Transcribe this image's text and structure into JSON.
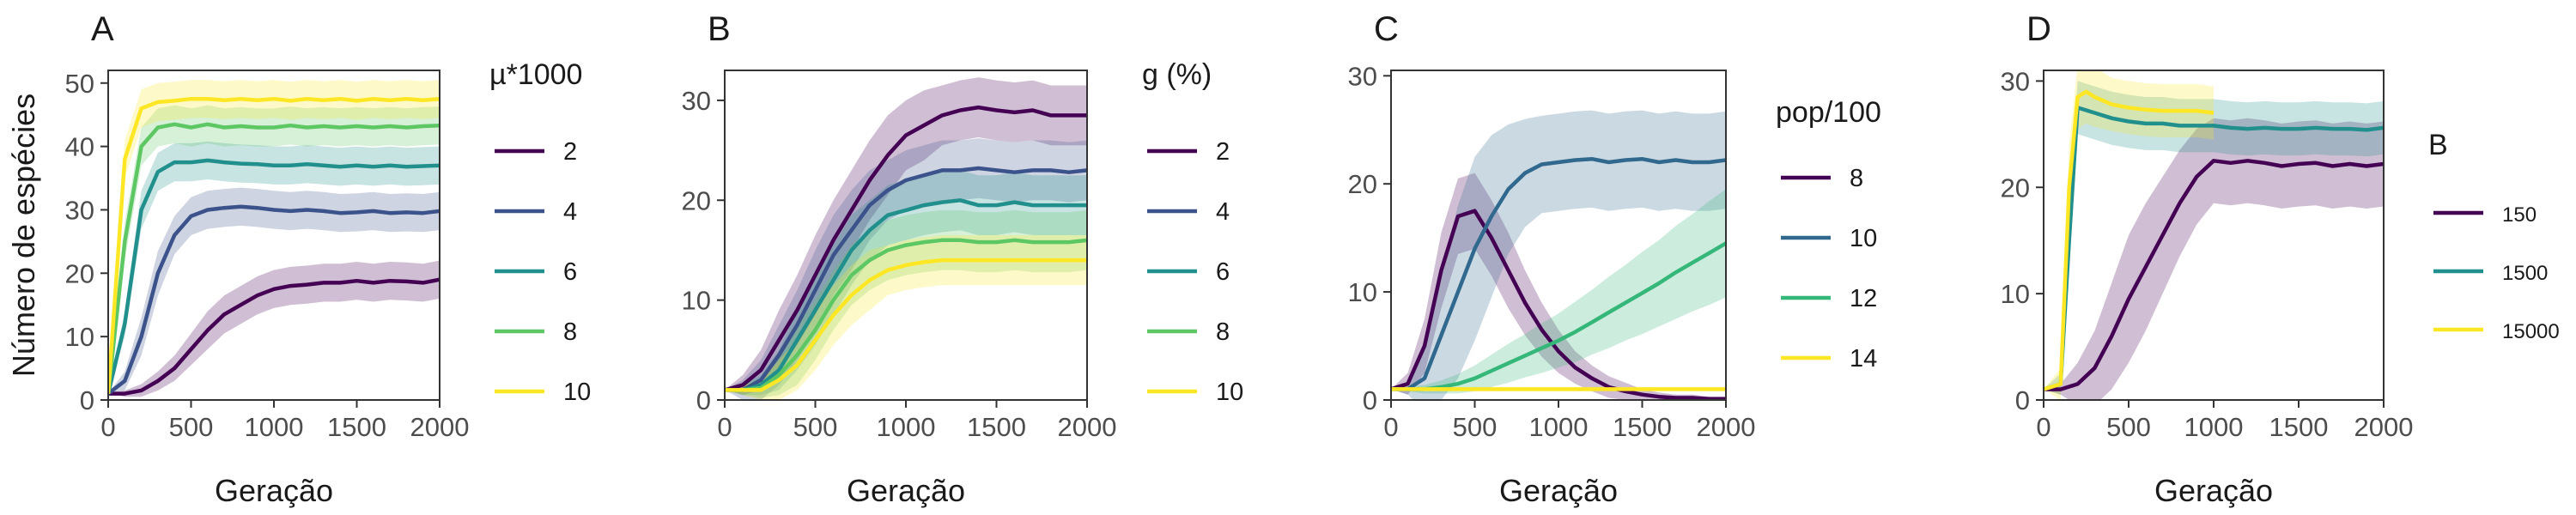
{
  "chart_data": [
    {
      "type": "line",
      "panel_label": "A",
      "xlabel": "Geração",
      "ylabel": "Número de espécies",
      "xlim": [
        0,
        2000
      ],
      "ylim": [
        0,
        52
      ],
      "xticks": [
        0,
        500,
        1000,
        1500,
        2000
      ],
      "xtick_labels": [
        "0",
        "500",
        "1000",
        "1500",
        "2000"
      ],
      "yticks": [
        0,
        10,
        20,
        30,
        40,
        50
      ],
      "legend_title": "µ*1000",
      "legend_small": false,
      "grid": false,
      "legend_position": "right",
      "x": [
        0,
        100,
        200,
        300,
        400,
        500,
        600,
        700,
        800,
        900,
        1000,
        1100,
        1200,
        1300,
        1400,
        1500,
        1600,
        1700,
        1800,
        1900,
        2000
      ],
      "series": [
        {
          "name": "2",
          "color": "#440154",
          "values": [
            1,
            1,
            1.5,
            3,
            5,
            8,
            11,
            13.5,
            15,
            16.5,
            17.5,
            18,
            18.2,
            18.5,
            18.5,
            18.8,
            18.5,
            18.8,
            18.7,
            18.5,
            19
          ],
          "spread": [
            0,
            0.5,
            1,
            1.5,
            2,
            2.5,
            3,
            3,
            3,
            3,
            3,
            3,
            3,
            3,
            3,
            3,
            3,
            3,
            3,
            3,
            3
          ]
        },
        {
          "name": "4",
          "color": "#3b528b",
          "values": [
            1,
            3,
            10,
            20,
            26,
            29,
            30,
            30.3,
            30.5,
            30.3,
            30,
            29.8,
            30,
            29.8,
            29.5,
            29.6,
            29.8,
            29.5,
            29.6,
            29.5,
            29.8
          ],
          "spread": [
            0,
            1.5,
            3,
            3.5,
            3,
            3,
            3,
            3,
            3,
            3,
            3,
            3,
            3,
            3,
            3,
            3,
            3,
            3,
            3,
            3,
            3
          ]
        },
        {
          "name": "6",
          "color": "#21908d",
          "values": [
            1,
            12,
            30,
            36,
            37.5,
            37.5,
            37.8,
            37.5,
            37.3,
            37.2,
            37,
            37,
            37.2,
            37,
            36.8,
            37,
            36.8,
            37,
            36.8,
            36.9,
            37
          ],
          "spread": [
            0,
            2,
            3,
            3,
            3,
            3,
            3,
            3,
            3,
            3,
            3,
            3,
            3,
            3,
            3,
            3,
            3,
            3,
            3,
            3,
            3
          ]
        },
        {
          "name": "8",
          "color": "#5dc863",
          "values": [
            1,
            25,
            40,
            43,
            43.5,
            43,
            43.5,
            43,
            43.2,
            43,
            43,
            43.3,
            43,
            43.2,
            43,
            43.2,
            43,
            43.2,
            43,
            43.2,
            43.3
          ],
          "spread": [
            0,
            3,
            3,
            3,
            3,
            3,
            3,
            3,
            3,
            3,
            3,
            3,
            3,
            3,
            3,
            3,
            3,
            3,
            3,
            3,
            3
          ]
        },
        {
          "name": "10",
          "color": "#fde725",
          "values": [
            1,
            38,
            46,
            47,
            47.2,
            47.5,
            47.5,
            47.3,
            47.5,
            47.3,
            47.5,
            47.2,
            47.5,
            47.3,
            47.5,
            47.2,
            47.5,
            47.3,
            47.5,
            47.3,
            47.5
          ],
          "spread": [
            0,
            3,
            3,
            3,
            3,
            3,
            3,
            3,
            3,
            3,
            3,
            3,
            3,
            3,
            3,
            3,
            3,
            3,
            3,
            3,
            3
          ]
        }
      ]
    },
    {
      "type": "line",
      "panel_label": "B",
      "xlabel": "Geração",
      "ylabel": "",
      "xlim": [
        0,
        2000
      ],
      "ylim": [
        0,
        33
      ],
      "xticks": [
        0,
        500,
        1000,
        1500,
        2000
      ],
      "xtick_labels": [
        "0",
        "500",
        "1000",
        "1500",
        "2000"
      ],
      "yticks": [
        0,
        10,
        20,
        30
      ],
      "legend_title": "g (%)",
      "legend_small": false,
      "grid": false,
      "legend_position": "right",
      "x": [
        0,
        100,
        200,
        300,
        400,
        500,
        600,
        700,
        800,
        900,
        1000,
        1100,
        1200,
        1300,
        1400,
        1500,
        1600,
        1700,
        1800,
        1900,
        2000
      ],
      "series": [
        {
          "name": "2",
          "color": "#440154",
          "values": [
            1,
            1.5,
            3,
            6,
            9,
            12.5,
            16,
            19,
            22,
            24.5,
            26.5,
            27.5,
            28.5,
            29,
            29.3,
            29,
            28.8,
            29,
            28.5,
            28.5,
            28.5
          ],
          "spread": [
            0,
            1,
            2,
            3,
            3.5,
            4,
            4,
            4,
            4,
            4,
            3.5,
            3.5,
            3,
            3,
            3,
            3,
            3,
            3,
            3,
            3,
            3
          ]
        },
        {
          "name": "4",
          "color": "#3b528b",
          "values": [
            1,
            1,
            2,
            4.5,
            7.5,
            11,
            14.5,
            17,
            19.5,
            21,
            22,
            22.5,
            23,
            23,
            23.2,
            23,
            22.8,
            23,
            23,
            22.8,
            23
          ],
          "spread": [
            0,
            1,
            2,
            3,
            3.5,
            4,
            4,
            4,
            3.5,
            3,
            3,
            3,
            3,
            3,
            3,
            3,
            3,
            3,
            3,
            3,
            3
          ]
        },
        {
          "name": "6",
          "color": "#21908d",
          "values": [
            1,
            1,
            1.5,
            3,
            6,
            9,
            12,
            15,
            17,
            18.5,
            19,
            19.5,
            19.8,
            20,
            19.5,
            19.5,
            19.8,
            19.5,
            19.5,
            19.5,
            19.5
          ],
          "spread": [
            0,
            0.5,
            1,
            2,
            3,
            3.5,
            3.5,
            3.5,
            3,
            3,
            3,
            3,
            3,
            3,
            3,
            3,
            3,
            3,
            3,
            3,
            3
          ]
        },
        {
          "name": "8",
          "color": "#5dc863",
          "values": [
            1,
            1,
            1.2,
            2.5,
            4.5,
            7,
            10,
            12.5,
            14,
            15,
            15.5,
            15.8,
            16,
            16,
            15.8,
            15.8,
            16,
            15.8,
            15.8,
            15.8,
            16
          ],
          "spread": [
            0,
            0.5,
            1,
            2,
            3,
            3,
            3,
            3,
            3,
            3,
            3,
            3,
            3,
            3,
            3,
            3,
            3,
            3,
            3,
            3,
            3
          ]
        },
        {
          "name": "10",
          "color": "#fde725",
          "values": [
            1,
            1,
            1,
            2,
            3.5,
            6,
            8.5,
            10.5,
            12,
            13,
            13.5,
            13.8,
            14,
            14,
            14,
            14,
            14,
            14,
            14,
            14,
            14
          ],
          "spread": [
            0,
            0.5,
            1,
            2,
            2.5,
            3,
            3,
            3,
            3,
            2.5,
            2.5,
            2.5,
            2.5,
            2.5,
            2.5,
            2.5,
            2.5,
            2.5,
            2.5,
            2.5,
            2.5
          ]
        }
      ]
    },
    {
      "type": "line",
      "panel_label": "C",
      "xlabel": "Geração",
      "ylabel": "",
      "xlim": [
        0,
        2000
      ],
      "ylim": [
        0,
        30.5
      ],
      "xticks": [
        0,
        500,
        1000,
        1500,
        2000
      ],
      "xtick_labels": [
        "0",
        "500",
        "1000",
        "1500",
        "2000"
      ],
      "yticks": [
        0,
        10,
        20,
        30
      ],
      "legend_title": "pop/100",
      "legend_small": false,
      "grid": false,
      "legend_position": "right",
      "x": [
        0,
        100,
        200,
        300,
        400,
        500,
        600,
        700,
        800,
        900,
        1000,
        1100,
        1200,
        1300,
        1400,
        1500,
        1600,
        1700,
        1800,
        1900,
        2000
      ],
      "series": [
        {
          "name": "8",
          "color": "#440154",
          "values": [
            1,
            1.5,
            5,
            12,
            17,
            17.5,
            15,
            12,
            9,
            6.5,
            4.5,
            3,
            2,
            1.2,
            0.8,
            0.5,
            0.3,
            0.2,
            0.2,
            0.1,
            0.1
          ],
          "spread": [
            0,
            1,
            2.5,
            3.5,
            3.5,
            3.5,
            3.5,
            3.5,
            3,
            2.5,
            2,
            1.5,
            1.2,
            1,
            0.8,
            0.5,
            0.4,
            0.3,
            0.3,
            0.2,
            0.2
          ]
        },
        {
          "name": "10",
          "color": "#31688e",
          "values": [
            1,
            1,
            2,
            6,
            10,
            14,
            17,
            19.5,
            21,
            21.8,
            22,
            22.2,
            22.3,
            22,
            22.2,
            22.3,
            22,
            22.2,
            22,
            22,
            22.2
          ],
          "spread": [
            0,
            0.5,
            3,
            6,
            8,
            8.5,
            7.5,
            6,
            5,
            4.5,
            4.5,
            4.5,
            4.5,
            4.5,
            4.5,
            4.5,
            4.5,
            4.5,
            4.5,
            4.5,
            4.5
          ]
        },
        {
          "name": "12",
          "color": "#35b779",
          "values": [
            1,
            1,
            1,
            1.2,
            1.5,
            2,
            2.7,
            3.4,
            4.1,
            4.8,
            5.5,
            6.3,
            7.2,
            8.1,
            9,
            9.9,
            10.8,
            11.8,
            12.7,
            13.6,
            14.5
          ],
          "spread": [
            0,
            0.2,
            0.4,
            0.6,
            0.9,
            1.2,
            1.5,
            1.8,
            2,
            2.3,
            2.5,
            2.8,
            3,
            3.3,
            3.5,
            3.8,
            4,
            4.3,
            4.5,
            4.8,
            5
          ]
        },
        {
          "name": "14",
          "color": "#fde725",
          "values": [
            1,
            1,
            1,
            1,
            1,
            1,
            1,
            1,
            1,
            1,
            1,
            1,
            1,
            1,
            1,
            1,
            1,
            1,
            1,
            1,
            1
          ],
          "spread": [
            0,
            0.1,
            0.2,
            0.2,
            0.2,
            0.2,
            0.2,
            0.2,
            0.2,
            0.2,
            0.2,
            0.2,
            0.2,
            0.2,
            0.2,
            0.2,
            0.2,
            0.2,
            0.2,
            0.2,
            0.2
          ]
        }
      ]
    },
    {
      "type": "line",
      "panel_label": "D",
      "xlabel": "Geração",
      "ylabel": "",
      "xlim": [
        0,
        2000
      ],
      "ylim": [
        0,
        31
      ],
      "xticks": [
        0,
        500,
        1000,
        1500,
        2000
      ],
      "xtick_labels": [
        "0",
        "500",
        "1000",
        "1500",
        "2000"
      ],
      "yticks": [
        0,
        10,
        20,
        30
      ],
      "legend_title": "B",
      "legend_small": true,
      "grid": false,
      "legend_position": "right",
      "series": [
        {
          "name": "150",
          "color": "#440154",
          "x": [
            0,
            100,
            200,
            300,
            400,
            500,
            600,
            700,
            800,
            900,
            1000,
            1100,
            1200,
            1300,
            1400,
            1500,
            1600,
            1700,
            1800,
            1900,
            2000
          ],
          "values": [
            1,
            1,
            1.5,
            3,
            6,
            9.5,
            12.5,
            15.5,
            18.5,
            21,
            22.5,
            22.3,
            22.5,
            22.3,
            22,
            22.2,
            22.3,
            22,
            22.2,
            22,
            22.2
          ],
          "spread": [
            0,
            0.5,
            2,
            3.5,
            5,
            6,
            6,
            5.5,
            5,
            4.5,
            4,
            4,
            4,
            4,
            4,
            4,
            4,
            4,
            4,
            4,
            4
          ]
        },
        {
          "name": "1500",
          "color": "#21908d",
          "x": [
            0,
            100,
            150,
            200,
            300,
            400,
            500,
            600,
            700,
            800,
            900,
            1000,
            1100,
            1200,
            1300,
            1400,
            1500,
            1600,
            1700,
            1800,
            1900,
            2000
          ],
          "values": [
            1,
            1.5,
            15,
            27.5,
            27,
            26.5,
            26.2,
            26,
            26,
            25.8,
            25.8,
            25.8,
            25.6,
            25.5,
            25.6,
            25.5,
            25.5,
            25.6,
            25.5,
            25.5,
            25.4,
            25.6
          ],
          "spread": [
            0,
            1,
            3,
            2.5,
            2.5,
            2.5,
            2.5,
            2.5,
            2.5,
            2.5,
            2.5,
            2.5,
            2.5,
            2.5,
            2.5,
            2.5,
            2.5,
            2.5,
            2.5,
            2.5,
            2.5,
            2.5
          ]
        },
        {
          "name": "15000",
          "color": "#fde725",
          "x": [
            0,
            100,
            150,
            200,
            250,
            300,
            400,
            500,
            600,
            700,
            800,
            900,
            1000
          ],
          "values": [
            1,
            1.5,
            20,
            28.5,
            29,
            28.5,
            27.8,
            27.5,
            27.3,
            27.2,
            27.2,
            27.2,
            27
          ],
          "spread": [
            0,
            1.5,
            4,
            3,
            3,
            2.8,
            2.5,
            2.5,
            2.5,
            2.5,
            2.5,
            2.5,
            2.5
          ]
        }
      ]
    }
  ]
}
